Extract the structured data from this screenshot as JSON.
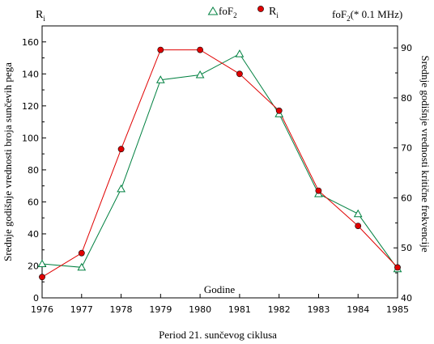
{
  "chart_data": {
    "type": "line",
    "title": "",
    "caption": "Period 21.  sunčevog ciklusa",
    "xlabel": "Godine",
    "ylabel_left": "Srednje godišnje vrednosti broja sunčevih pega",
    "ylabel_right": "Srednje godišnje vrednosti kritične frekvencije",
    "top_left_label": {
      "main": "R",
      "sub": "i"
    },
    "top_right_label": {
      "main": "foF",
      "sub": "2",
      "rest": "(* 0.1 MHz)"
    },
    "x": [
      1976,
      1977,
      1978,
      1979,
      1980,
      1981,
      1982,
      1983,
      1984,
      1985
    ],
    "xlim": [
      1976,
      1985
    ],
    "ylim_left": [
      0,
      170
    ],
    "ylim_right": [
      40,
      94.4
    ],
    "yticks_left": [
      0,
      20,
      40,
      60,
      80,
      100,
      120,
      140,
      160
    ],
    "yticks_right": [
      40,
      50,
      60,
      70,
      80,
      90
    ],
    "grid": false,
    "legend_position": "top-center",
    "series": [
      {
        "name": "foF",
        "name_sub": "2",
        "axis": "right",
        "marker": "triangle-open",
        "color": "#008040",
        "values": [
          46.8,
          46.1,
          61.8,
          83.6,
          84.6,
          88.8,
          76.8,
          60.8,
          56.8,
          45.8
        ]
      },
      {
        "name": "R",
        "name_sub": "i",
        "axis": "left",
        "marker": "circle-filled",
        "color": "#e00000",
        "values": [
          13,
          28,
          93,
          155,
          155,
          140,
          117,
          67,
          45,
          19
        ]
      }
    ]
  }
}
